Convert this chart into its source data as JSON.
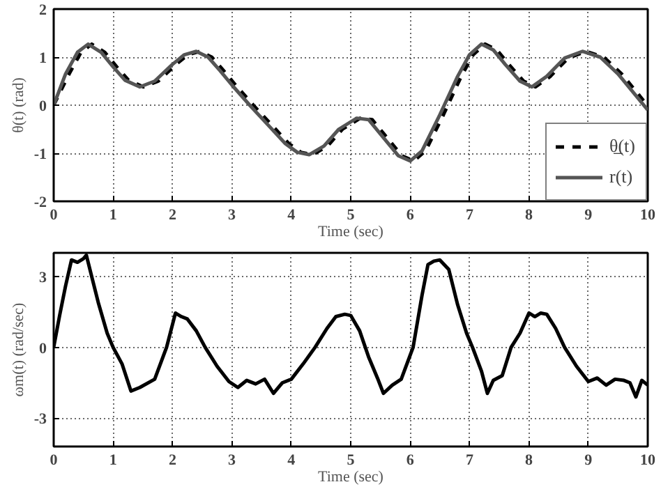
{
  "chart_data": [
    {
      "type": "line",
      "xlabel": "Time (sec)",
      "ylabel": "θ(t) (rad)",
      "xlim": [
        0,
        10
      ],
      "ylim": [
        -2,
        2
      ],
      "xticks": [
        0,
        1,
        2,
        3,
        4,
        5,
        6,
        7,
        8,
        9,
        10
      ],
      "yticks": [
        -2,
        -1,
        0,
        1,
        2
      ],
      "grid": true,
      "legend": "bottom right",
      "series": [
        {
          "name": "θ̲(t)",
          "color": "#000000",
          "line_style": "dashed",
          "x": [
            0,
            0.26,
            0.46,
            0.64,
            0.86,
            1.06,
            1.26,
            1.51,
            1.76,
            2.06,
            2.26,
            2.46,
            2.66,
            2.86,
            3.06,
            3.36,
            3.66,
            3.96,
            4.16,
            4.36,
            4.61,
            4.86,
            5.16,
            5.36,
            5.56,
            5.86,
            6.06,
            6.26,
            6.56,
            6.86,
            7.06,
            7.26,
            7.46,
            7.66,
            7.91,
            8.11,
            8.36,
            8.66,
            8.96,
            9.26,
            9.56,
            9.86,
            10
          ],
          "values": [
            0,
            0.65,
            1.1,
            1.27,
            1.1,
            0.8,
            0.52,
            0.38,
            0.5,
            0.85,
            1.05,
            1.12,
            1.0,
            0.72,
            0.42,
            0.0,
            -0.4,
            -0.8,
            -0.98,
            -1.03,
            -0.85,
            -0.5,
            -0.27,
            -0.3,
            -0.6,
            -1.05,
            -1.16,
            -0.95,
            -0.2,
            0.6,
            1.05,
            1.27,
            1.15,
            0.85,
            0.5,
            0.38,
            0.6,
            0.98,
            1.12,
            1.0,
            0.65,
            0.2,
            -0.02
          ]
        },
        {
          "name": "r(t)",
          "color": "#555555",
          "line_style": "solid",
          "x": [
            0,
            0.2,
            0.4,
            0.58,
            0.8,
            1.0,
            1.2,
            1.45,
            1.7,
            2.0,
            2.2,
            2.4,
            2.6,
            2.8,
            3.0,
            3.3,
            3.6,
            3.9,
            4.1,
            4.3,
            4.55,
            4.8,
            5.1,
            5.3,
            5.5,
            5.8,
            6.0,
            6.2,
            6.5,
            6.8,
            7.0,
            7.2,
            7.4,
            7.6,
            7.85,
            8.05,
            8.3,
            8.6,
            8.9,
            9.2,
            9.5,
            9.8,
            10
          ],
          "values": [
            0,
            0.65,
            1.1,
            1.27,
            1.1,
            0.8,
            0.52,
            0.38,
            0.5,
            0.85,
            1.05,
            1.12,
            1.0,
            0.72,
            0.42,
            0.0,
            -0.4,
            -0.8,
            -0.98,
            -1.03,
            -0.85,
            -0.5,
            -0.27,
            -0.3,
            -0.6,
            -1.05,
            -1.16,
            -0.95,
            -0.2,
            0.6,
            1.05,
            1.27,
            1.15,
            0.85,
            0.5,
            0.38,
            0.6,
            0.98,
            1.12,
            1.0,
            0.65,
            0.2,
            -0.1
          ]
        }
      ]
    },
    {
      "type": "line",
      "xlabel": "Time (sec)",
      "ylabel": "ωm(t) (rad/sec)",
      "xlim": [
        0,
        10
      ],
      "ylim": [
        -4.2,
        4
      ],
      "xticks": [
        0,
        1,
        2,
        3,
        4,
        5,
        6,
        7,
        8,
        9,
        10
      ],
      "yticks": [
        -3,
        0,
        3
      ],
      "grid": true,
      "series": [
        {
          "color": "#000000",
          "line_style": "solid",
          "x": [
            0,
            0.1,
            0.2,
            0.3,
            0.4,
            0.5,
            0.55,
            0.65,
            0.75,
            0.9,
            1.0,
            1.15,
            1.3,
            1.45,
            1.7,
            1.9,
            2.05,
            2.15,
            2.25,
            2.4,
            2.55,
            2.75,
            2.95,
            3.1,
            3.25,
            3.4,
            3.55,
            3.7,
            3.85,
            4.0,
            4.2,
            4.4,
            4.6,
            4.75,
            4.9,
            5.0,
            5.15,
            5.3,
            5.45,
            5.55,
            5.7,
            5.85,
            6.05,
            6.2,
            6.3,
            6.4,
            6.5,
            6.65,
            6.8,
            6.95,
            7.05,
            7.2,
            7.3,
            7.4,
            7.55,
            7.7,
            7.85,
            8.0,
            8.1,
            8.2,
            8.3,
            8.45,
            8.6,
            8.8,
            9.0,
            9.15,
            9.3,
            9.45,
            9.6,
            9.7,
            9.8,
            9.9,
            10
          ],
          "values": [
            0,
            1.35,
            2.6,
            3.7,
            3.6,
            3.75,
            3.9,
            2.9,
            1.9,
            0.6,
            0,
            -0.7,
            -1.85,
            -1.7,
            -1.35,
            0,
            1.45,
            1.3,
            1.2,
            0.7,
            0,
            -0.8,
            -1.45,
            -1.7,
            -1.4,
            -1.55,
            -1.35,
            -1.95,
            -1.5,
            -1.35,
            -0.7,
            0,
            0.8,
            1.3,
            1.4,
            1.35,
            0.7,
            -0.4,
            -1.3,
            -1.95,
            -1.6,
            -1.35,
            0,
            2.2,
            3.5,
            3.65,
            3.7,
            3.3,
            1.8,
            0.6,
            0,
            -1.0,
            -1.95,
            -1.4,
            -1.2,
            0,
            0.6,
            1.45,
            1.3,
            1.45,
            1.4,
            0.8,
            0,
            -0.8,
            -1.45,
            -1.3,
            -1.6,
            -1.35,
            -1.4,
            -1.5,
            -2.1,
            -1.4,
            -1.6
          ]
        }
      ]
    }
  ]
}
